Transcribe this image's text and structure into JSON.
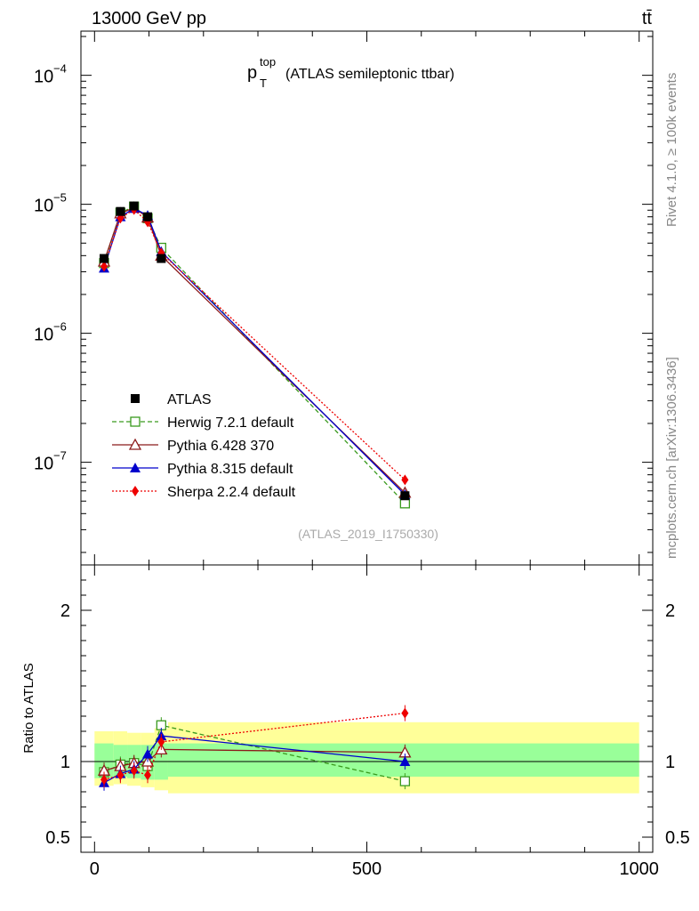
{
  "header": {
    "left": "13000 GeV pp",
    "right": "tt̄"
  },
  "side_labels": {
    "top": "Rivet 4.1.0, ≥ 100k events",
    "bottom": "mcplots.cern.ch [arXiv:1306.3436]"
  },
  "chart_data": {
    "type": "line",
    "title_main": "p",
    "title_sup": "top",
    "title_sub": "T",
    "title_rest": "(ATLAS semileptonic ttbar)",
    "analysis_tag": "(ATLAS_2019_I1750330)",
    "x_ticks": [
      "0",
      "500",
      "1000"
    ],
    "xlim": [
      -25,
      1025
    ],
    "upper_yscale": "log",
    "upper_ylim": [
      1.6e-08,
      0.00022
    ],
    "upper_y_ticks": [
      {
        "value": 0.0001,
        "base": "10",
        "exp": "−4"
      },
      {
        "value": 1e-05,
        "base": "10",
        "exp": "−5"
      },
      {
        "value": 1e-06,
        "base": "10",
        "exp": "−6"
      },
      {
        "value": 1e-07,
        "base": "10",
        "exp": "−7"
      }
    ],
    "ratio_ylabel": "Ratio to ATLAS",
    "ratio_ylim": [
      0.4,
      2.3
    ],
    "ratio_y_ticks": [
      "2",
      "1",
      "0.5"
    ],
    "ratio_y_values": [
      2,
      1,
      0.5
    ],
    "x_points": [
      17.5,
      47.5,
      72.5,
      97.5,
      122.5,
      570
    ],
    "bins": [
      [
        0,
        35
      ],
      [
        35,
        60
      ],
      [
        60,
        85
      ],
      [
        85,
        110
      ],
      [
        110,
        135
      ],
      [
        135,
        1000
      ]
    ],
    "band_green": [
      [
        0.89,
        1.12
      ],
      [
        0.9,
        1.11
      ],
      [
        0.89,
        1.11
      ],
      [
        0.88,
        1.11
      ],
      [
        0.88,
        1.12
      ],
      [
        0.9,
        1.12
      ]
    ],
    "band_yellow": [
      [
        0.84,
        1.2
      ],
      [
        0.85,
        1.2
      ],
      [
        0.84,
        1.19
      ],
      [
        0.83,
        1.19
      ],
      [
        0.81,
        1.22
      ],
      [
        0.79,
        1.26
      ]
    ],
    "series": [
      {
        "name": "ATLAS",
        "color": "#000000",
        "marker": "square-filled",
        "dash": "none",
        "values": [
          3.8e-06,
          8.8e-06,
          9.7e-06,
          8e-06,
          3.8e-06,
          5.5e-08
        ],
        "ratio": [
          1,
          1,
          1,
          1,
          1,
          1
        ]
      },
      {
        "name": "Herwig 7.2.1 default",
        "color": "#3a9a1e",
        "marker": "square-open",
        "dash": "5,3",
        "values": [
          3.5e-06,
          8.6e-06,
          9.6e-06,
          7.8e-06,
          4.6e-06,
          4.8e-08
        ],
        "ratio": [
          0.93,
          0.98,
          0.99,
          0.97,
          1.24,
          0.87
        ]
      },
      {
        "name": "Pythia 6.428 370",
        "color": "#8b1a1a",
        "marker": "triangle-open",
        "dash": "none",
        "values": [
          3.6e-06,
          8.5e-06,
          9.4e-06,
          7.9e-06,
          4e-06,
          5.8e-08
        ],
        "ratio": [
          0.94,
          0.97,
          0.99,
          1.0,
          1.08,
          1.06
        ]
      },
      {
        "name": "Pythia 8.315 default",
        "color": "#0000cc",
        "marker": "triangle-filled",
        "dash": "none",
        "values": [
          3.2e-06,
          8e-06,
          9.3e-06,
          8.2e-06,
          4.3e-06,
          5.6e-08
        ],
        "ratio": [
          0.86,
          0.92,
          0.95,
          1.05,
          1.17,
          1.0
        ]
      },
      {
        "name": "Sherpa 2.2.4 default",
        "color": "#ee0000",
        "marker": "diamond-filled",
        "dash": "2,2",
        "values": [
          3.3e-06,
          7.8e-06,
          9.1e-06,
          7.3e-06,
          4.2e-06,
          7.3e-08
        ],
        "ratio": [
          0.88,
          0.91,
          0.94,
          0.91,
          1.13,
          1.32
        ]
      }
    ]
  }
}
